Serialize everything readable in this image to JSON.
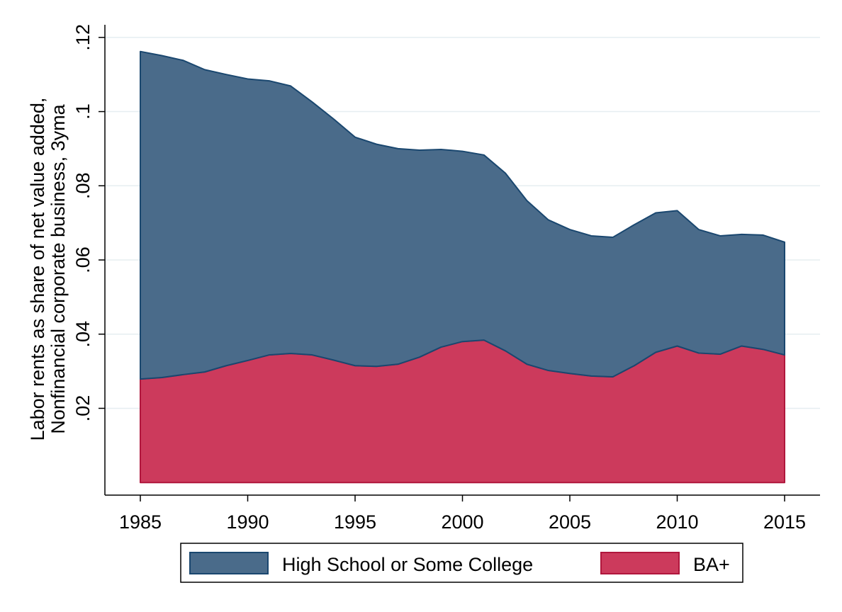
{
  "chart_data": {
    "type": "stacked_area",
    "y_label": "Labor rents as share of net value added,",
    "y_label_2": "Nonfinancial corporate business, 3yma",
    "x": [
      1985,
      1986,
      1987,
      1988,
      1989,
      1990,
      1991,
      1992,
      1993,
      1994,
      1995,
      1996,
      1997,
      1998,
      1999,
      2000,
      2001,
      2002,
      2003,
      2004,
      2005,
      2006,
      2007,
      2008,
      2009,
      2010,
      2011,
      2012,
      2013,
      2014,
      2015
    ],
    "series": [
      {
        "name": "High School or Some College",
        "color": "#4a6b8a",
        "values": [
          0.0883,
          0.0868,
          0.0847,
          0.0815,
          0.0785,
          0.0759,
          0.0739,
          0.0721,
          0.0682,
          0.065,
          0.0616,
          0.0599,
          0.0581,
          0.0558,
          0.0533,
          0.0513,
          0.0499,
          0.0479,
          0.0441,
          0.0406,
          0.0388,
          0.0378,
          0.0376,
          0.038,
          0.0376,
          0.0365,
          0.0333,
          0.0319,
          0.0301,
          0.0308,
          0.0304
        ]
      },
      {
        "name": "BA+",
        "color": "#cc3a5c",
        "values": [
          0.0279,
          0.0283,
          0.0291,
          0.0298,
          0.0315,
          0.0329,
          0.0344,
          0.0348,
          0.0344,
          0.033,
          0.0315,
          0.0313,
          0.0319,
          0.0338,
          0.0365,
          0.038,
          0.0384,
          0.0355,
          0.0319,
          0.0302,
          0.0294,
          0.0287,
          0.0285,
          0.0315,
          0.0351,
          0.0368,
          0.0349,
          0.0346,
          0.0368,
          0.0359,
          0.0344
        ]
      }
    ],
    "xlim": [
      1983.35,
      2016.65
    ],
    "xticks": [
      1985,
      1990,
      1995,
      2000,
      2005,
      2010,
      2015
    ],
    "ylim": [
      -0.0034,
      0.1234
    ],
    "yticks": [
      {
        "value": 0.02,
        "label": ".02"
      },
      {
        "value": 0.04,
        "label": ".04"
      },
      {
        "value": 0.06,
        "label": ".06"
      },
      {
        "value": 0.08,
        "label": ".08"
      },
      {
        "value": 0.1,
        "label": ".1"
      },
      {
        "value": 0.12,
        "label": ".12"
      }
    ],
    "grid": true
  }
}
